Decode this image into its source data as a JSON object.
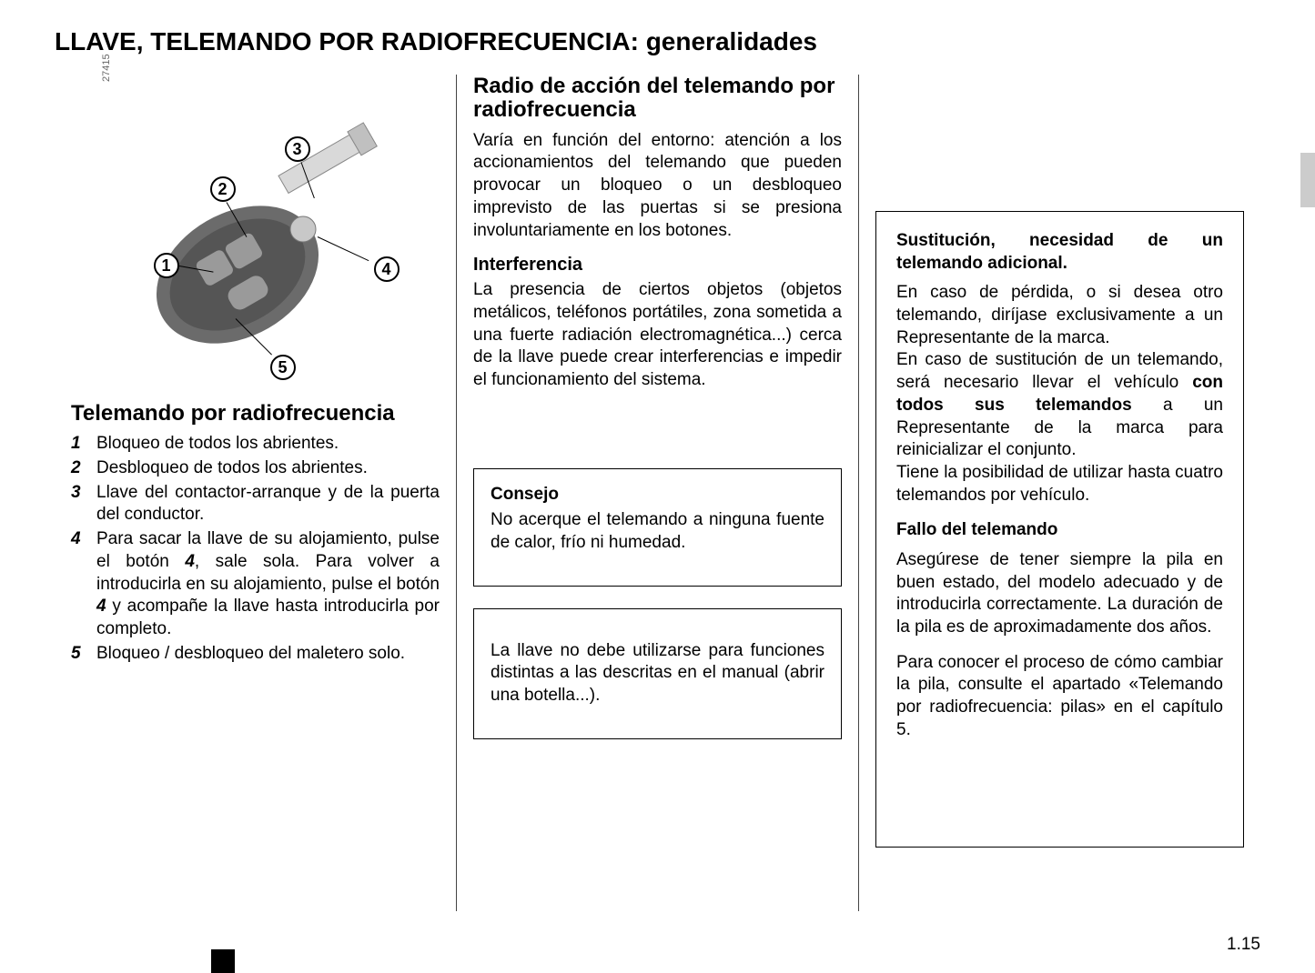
{
  "title": "LLAVE, TELEMANDO POR RADIOFRECUENCIA: generalidades",
  "figure": {
    "image_number": "27415",
    "callouts": [
      "1",
      "2",
      "3",
      "4",
      "5"
    ]
  },
  "col1": {
    "heading": "Telemando por radiofrecuencia",
    "items": [
      {
        "num": "1",
        "text": "Bloqueo de todos los abrientes."
      },
      {
        "num": "2",
        "text": "Desbloqueo de todos los abrientes."
      },
      {
        "num": "3",
        "text": "Llave del contactor-arranque y de la puerta del conductor."
      },
      {
        "num": "4",
        "text_html": "Para sacar la llave de su alojamiento, pulse el botón <span class=\"inline-num\">4</span>, sale sola. Para volver a introducirla en su alojamiento, pulse el botón <span class=\"inline-num\">4</span> y acompañe la llave hasta introducirla por completo."
      },
      {
        "num": "5",
        "text": "Bloqueo / desbloqueo del maletero solo."
      }
    ]
  },
  "col2": {
    "heading": "Radio de acción del telemando por radiofrecuencia",
    "p1": "Varía en función del entorno: atención a los accionamientos del telemando que pueden provocar un bloqueo o un desbloqueo imprevisto de las puertas si se presiona involuntariamente en los botones.",
    "sub1_title": "Interferencia",
    "sub1_text": "La presencia de ciertos objetos (objetos metálicos, teléfonos portátiles, zona sometida a una fuerte radiación electromagnética...) cerca de la llave puede crear interferencias e impedir el funcionamiento del sistema.",
    "box1_title": "Consejo",
    "box1_text": "No acerque el telemando a ninguna fuente de calor, frío ni humedad.",
    "box2_text": "La llave no debe utilizarse para funciones distintas a las descritas en el manual (abrir una botella...)."
  },
  "col3": {
    "s1_title": "Sustitución, necesidad de un telemando adicional.",
    "s1_p1_html": "En caso de pérdida, o si desea otro telemando, diríjase exclusivamente a un Representante de la marca.<br>En caso de sustitución de un telemando, será necesario llevar el vehículo <b>con todos sus telemandos</b> a un Representante de la marca para reinicializar el conjunto.<br>Tiene la posibilidad de utilizar hasta cuatro telemandos por vehículo.",
    "s2_title": "Fallo del telemando",
    "s2_p1": "Asegúrese de tener siempre la pila en buen estado, del modelo adecuado y de introducirla correctamente. La duración de la pila es de aproximadamente dos años.",
    "s2_p2": "Para conocer el proceso de cómo cambiar la pila, consulte el apartado «Telemando por radiofrecuencia: pilas» en el capítulo 5."
  },
  "page_number": "1.15"
}
